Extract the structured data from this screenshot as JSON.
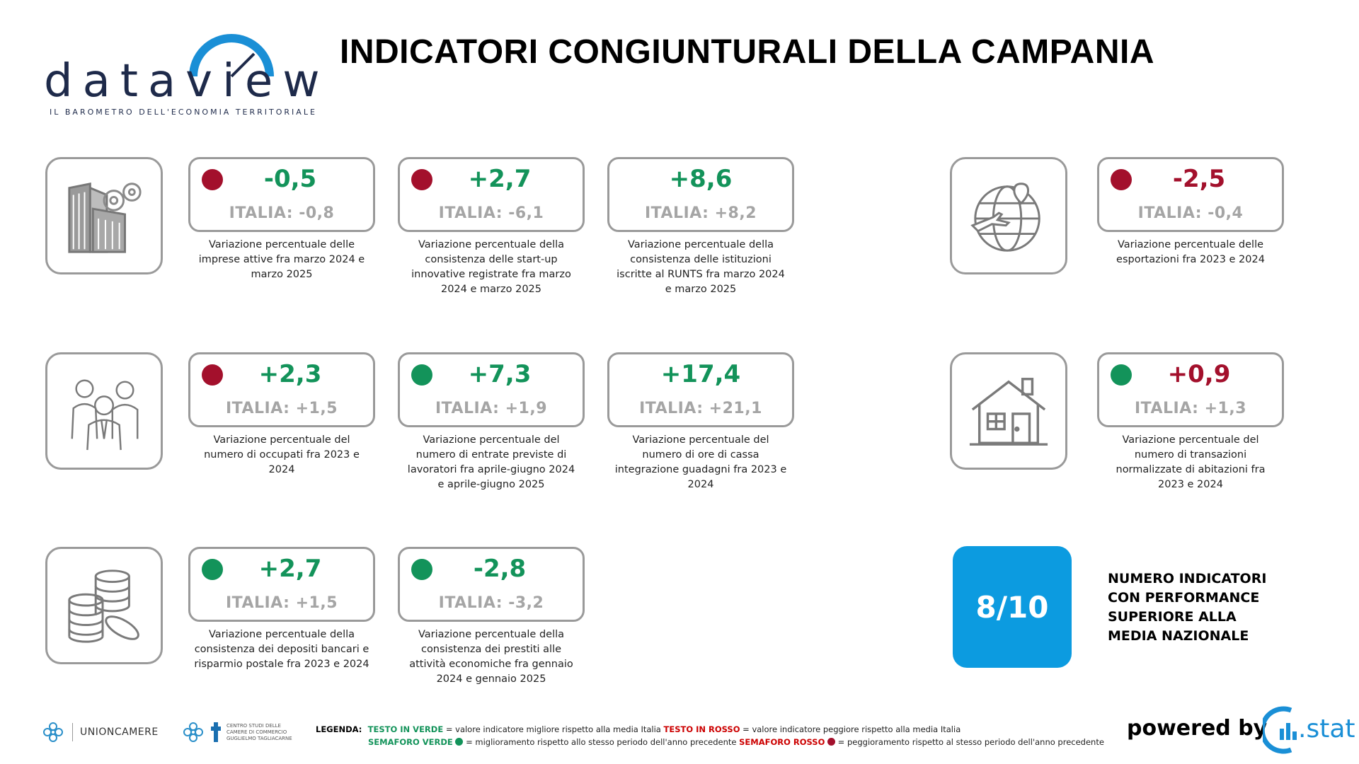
{
  "header": {
    "logo_text": "dataview",
    "logo_tagline": "IL BAROMETRO DELL'ECONOMIA TERRITORIALE",
    "title": "INDICATORI CONGIUNTURALI DELLA CAMPANIA"
  },
  "colors": {
    "green": "#13935a",
    "red": "#a3102c",
    "accent_blue": "#0c9be0",
    "border_gray": "#9a9a9a"
  },
  "icons": {
    "row1_left": "buildings-gears-icon",
    "row1_right": "globe-airplane-icon",
    "row2_left": "people-group-icon",
    "row2_right": "house-icon",
    "row3_left": "coins-stack-icon"
  },
  "cards": [
    {
      "value": "-0,5",
      "value_color": "green",
      "semaforo": "red",
      "italia": "ITALIA: -0,8",
      "desc": "Variazione percentuale delle imprese attive fra marzo 2024 e marzo 2025"
    },
    {
      "value": "+2,7",
      "value_color": "green",
      "semaforo": "red",
      "italia": "ITALIA: -6,1",
      "desc": "Variazione percentuale della consistenza delle start-up innovative registrate fra marzo 2024 e marzo 2025"
    },
    {
      "value": "+8,6",
      "value_color": "green",
      "semaforo": null,
      "italia": "ITALIA: +8,2",
      "desc": "Variazione percentuale della consistenza delle istituzioni iscritte al RUNTS fra marzo 2024 e marzo 2025"
    },
    {
      "value": "-2,5",
      "value_color": "red",
      "semaforo": "red",
      "italia": "ITALIA: -0,4",
      "desc": "Variazione percentuale delle esportazioni fra 2023 e 2024"
    },
    {
      "value": "+2,3",
      "value_color": "green",
      "semaforo": "red",
      "italia": "ITALIA: +1,5",
      "desc": "Variazione percentuale del numero di occupati fra 2023 e 2024"
    },
    {
      "value": "+7,3",
      "value_color": "green",
      "semaforo": "green",
      "italia": "ITALIA: +1,9",
      "desc": "Variazione percentuale del numero di entrate previste di lavoratori fra aprile-giugno 2024 e aprile-giugno 2025"
    },
    {
      "value": "+17,4",
      "value_color": "green",
      "semaforo": null,
      "italia": "ITALIA: +21,1",
      "desc": "Variazione percentuale del numero di ore di cassa integrazione guadagni fra 2023 e 2024"
    },
    {
      "value": "+0,9",
      "value_color": "red",
      "semaforo": "green",
      "italia": "ITALIA: +1,3",
      "desc": "Variazione percentuale del numero di transazioni normalizzate di abitazioni fra 2023 e 2024"
    },
    {
      "value": "+2,7",
      "value_color": "green",
      "semaforo": "green",
      "italia": "ITALIA: +1,5",
      "desc": "Variazione percentuale della consistenza dei depositi bancari e risparmio postale fra 2023 e 2024"
    },
    {
      "value": "-2,8",
      "value_color": "green",
      "semaforo": "green",
      "italia": "ITALIA: -3,2",
      "desc": "Variazione percentuale della consistenza dei prestiti alle attività economiche fra gennaio 2024 e gennaio 2025"
    }
  ],
  "score": {
    "value": "8/10",
    "label_lines": [
      "NUMERO INDICATORI",
      "CON PERFORMANCE",
      "SUPERIORE ALLA",
      "MEDIA NAZIONALE"
    ]
  },
  "footer": {
    "unioncamere": "UNIONCAMERE",
    "centro_studi": "CENTRO STUDI DELLE CAMERE DI COMMERCIO GUGLIELMO TAGLIACARNE",
    "legend_head": "LEGENDA:",
    "legend_green_text": "TESTO IN VERDE",
    "legend_green_text_desc": "= valore indicatore migliore rispetto alla media Italia",
    "legend_red_text": "TESTO IN ROSSO",
    "legend_red_text_desc": "= valore indicatore peggiore rispetto alla media Italia",
    "legend_green_light": "SEMAFORO VERDE",
    "legend_green_light_desc": "= miglioramento rispetto allo stesso periodo dell'anno precedente",
    "legend_red_light": "SEMAFORO ROSSO",
    "legend_red_light_desc": "= peggioramento rispetto al stesso periodo dell'anno precedente",
    "powered_by": "powered by",
    "cstat": ".stat"
  }
}
